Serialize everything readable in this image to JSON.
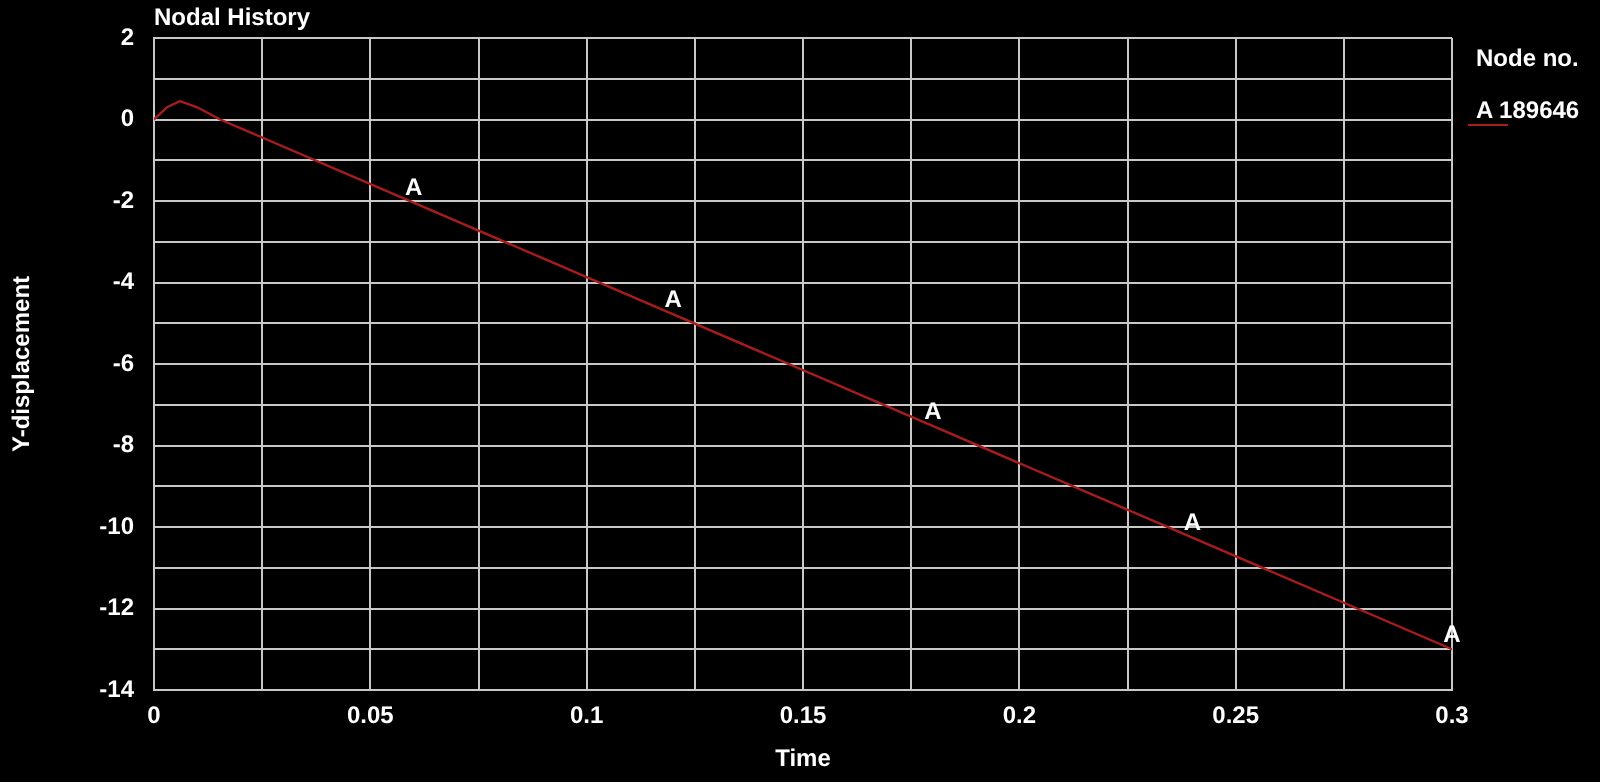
{
  "chart_data": {
    "type": "line",
    "title": "Nodal History",
    "xlabel": "Time",
    "ylabel": "Y-displacement",
    "legend_title": "Node no.",
    "legend": "top right",
    "grid": true,
    "x": [
      0,
      0.003,
      0.006,
      0.01,
      0.0153,
      0.3
    ],
    "series": [
      {
        "name": "A 189646",
        "color": "#a81c1c",
        "values": [
          0,
          0.3,
          0.45,
          0.3,
          0,
          -13.0
        ]
      }
    ],
    "xlim": [
      0,
      0.3
    ],
    "xticks": [
      0,
      {
        "value": 0.025,
        "label": null
      },
      0.05,
      {
        "value": 0.075,
        "label": null
      },
      0.1,
      {
        "value": 0.125,
        "label": null
      },
      0.15,
      {
        "value": 0.175,
        "label": null
      },
      0.2,
      {
        "value": 0.225,
        "label": null
      },
      0.25,
      {
        "value": 0.275,
        "label": null
      },
      0.3
    ],
    "ylim": [
      -14,
      2
    ],
    "yticks": [
      -14,
      {
        "value": -13,
        "label": null
      },
      -12,
      {
        "value": -11,
        "label": null
      },
      -10,
      {
        "value": -9,
        "label": null
      },
      -8,
      {
        "value": -7,
        "label": null
      },
      -6,
      {
        "value": -5,
        "label": null
      },
      -4,
      {
        "value": -3,
        "label": null
      },
      -2,
      {
        "value": -1,
        "label": null
      },
      0,
      {
        "value": 1,
        "label": null
      },
      2
    ],
    "annotations": [
      {
        "text": "A",
        "x": 0.06,
        "y": -2.04
      },
      {
        "text": "A",
        "x": 0.12,
        "y": -4.78
      },
      {
        "text": "A",
        "x": 0.18,
        "y": -7.52
      },
      {
        "text": "A",
        "x": 0.24,
        "y": -10.26
      },
      {
        "text": "A",
        "x": 0.3,
        "y": -13.0
      }
    ],
    "marker": "none",
    "line_style": "solid"
  }
}
